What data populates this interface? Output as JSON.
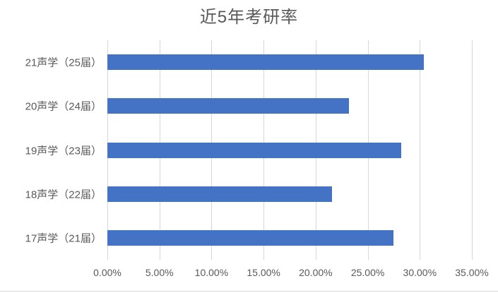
{
  "chart": {
    "colors": {
      "bar": "#4472C4",
      "gridline": "#D6D6D6",
      "axis_text": "#595959",
      "title_text": "#595959",
      "bottom_border": "#D9D9D9"
    }
  },
  "chart_data": {
    "type": "bar",
    "orientation": "horizontal",
    "title": "近5年考研率",
    "categories": [
      "21声学（25届）",
      "20声学（24届）",
      "19声学（23届）",
      "18声学（22届）",
      "17声学（21届）"
    ],
    "values": [
      30.4,
      23.2,
      28.2,
      21.6,
      27.5
    ],
    "value_unit": "%",
    "xlabel": "",
    "ylabel": "",
    "xlim": [
      0,
      35
    ],
    "x_ticks": [
      0,
      5,
      10,
      15,
      20,
      25,
      30,
      35
    ],
    "x_tick_labels": [
      "0.00%",
      "5.00%",
      "10.00%",
      "15.00%",
      "20.00%",
      "25.00%",
      "30.00%",
      "35.00%"
    ],
    "grid": "vertical-only",
    "legend": "none"
  }
}
